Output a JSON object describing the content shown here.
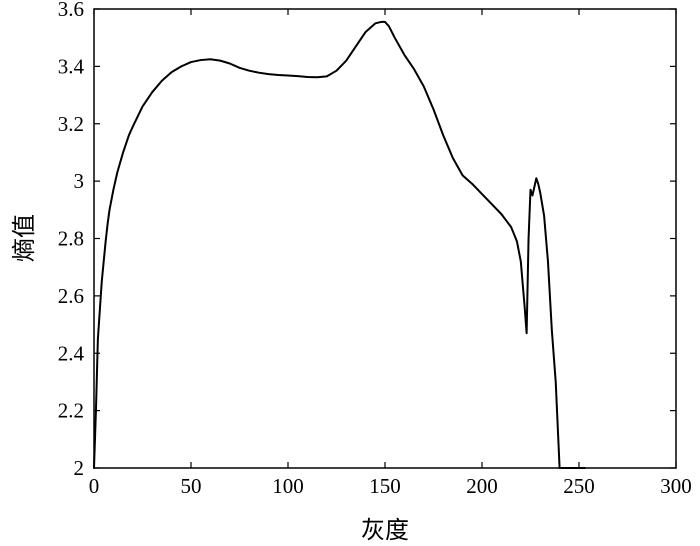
{
  "chart_data": {
    "type": "line",
    "title": "",
    "xlabel": "灰度",
    "ylabel": "熵值",
    "xlim": [
      0,
      300
    ],
    "ylim": [
      2,
      3.6
    ],
    "xticks": [
      0,
      50,
      100,
      150,
      200,
      250,
      300
    ],
    "yticks": [
      2,
      2.2,
      2.4,
      2.6,
      2.8,
      3,
      3.2,
      3.4,
      3.6
    ],
    "xtick_labels": [
      "0",
      "50",
      "100",
      "150",
      "200",
      "250",
      "300"
    ],
    "ytick_labels": [
      "2",
      "2.2",
      "2.4",
      "2.6",
      "2.8",
      "3",
      "3.2",
      "3.4",
      "3.6"
    ],
    "grid": false,
    "legend": "none",
    "colors": {
      "line": "#000000",
      "axes": "#000000"
    },
    "series": [
      {
        "x": [
          0,
          1,
          2,
          3,
          4,
          5,
          6,
          7,
          8,
          10,
          12,
          15,
          18,
          20,
          25,
          30,
          35,
          40,
          45,
          50,
          55,
          60,
          65,
          70,
          75,
          80,
          85,
          90,
          95,
          100,
          105,
          110,
          115,
          120,
          125,
          130,
          135,
          140,
          145,
          148,
          150,
          152,
          155,
          160,
          165,
          170,
          175,
          180,
          185,
          190,
          195,
          200,
          205,
          210,
          215,
          218,
          220,
          222,
          223,
          224,
          225,
          226,
          227,
          228,
          229,
          230,
          232,
          234,
          236,
          238,
          240,
          245,
          250,
          253
        ],
        "y": [
          2.0,
          2.2,
          2.45,
          2.55,
          2.65,
          2.72,
          2.79,
          2.85,
          2.9,
          2.97,
          3.03,
          3.1,
          3.16,
          3.19,
          3.26,
          3.31,
          3.35,
          3.38,
          3.4,
          3.415,
          3.422,
          3.425,
          3.42,
          3.41,
          3.395,
          3.385,
          3.378,
          3.373,
          3.37,
          3.368,
          3.366,
          3.363,
          3.362,
          3.365,
          3.385,
          3.42,
          3.47,
          3.52,
          3.55,
          3.555,
          3.555,
          3.54,
          3.5,
          3.44,
          3.39,
          3.33,
          3.25,
          3.16,
          3.08,
          3.02,
          2.99,
          2.955,
          2.92,
          2.885,
          2.84,
          2.79,
          2.72,
          2.56,
          2.47,
          2.8,
          2.97,
          2.95,
          2.98,
          3.01,
          2.99,
          2.96,
          2.88,
          2.72,
          2.48,
          2.3,
          2.0,
          2.0,
          2.0,
          2.0
        ]
      }
    ]
  }
}
